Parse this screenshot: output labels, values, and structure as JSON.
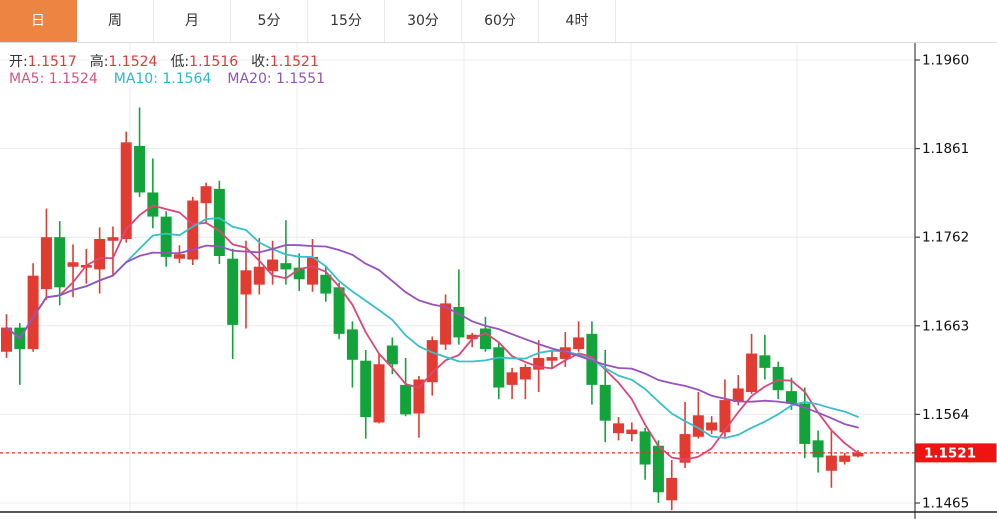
{
  "tabs": [
    {
      "label": "日",
      "name": "tab-day",
      "active": true
    },
    {
      "label": "周",
      "name": "tab-week",
      "active": false
    },
    {
      "label": "月",
      "name": "tab-month",
      "active": false
    },
    {
      "label": "5分",
      "name": "tab-5min",
      "active": false
    },
    {
      "label": "15分",
      "name": "tab-15min",
      "active": false
    },
    {
      "label": "30分",
      "name": "tab-30min",
      "active": false
    },
    {
      "label": "60分",
      "name": "tab-60min",
      "active": false
    },
    {
      "label": "4时",
      "name": "tab-4hour",
      "active": false
    }
  ],
  "accent": {
    "active_tab_bg": "#ee8441",
    "price_tag_bg": "#ee1412",
    "dotted_line": "#f02b1d"
  },
  "legend": {
    "ohlc": [
      {
        "label": "开:",
        "value": "1.1517"
      },
      {
        "label": "高:",
        "value": "1.1524"
      },
      {
        "label": "低:",
        "value": "1.1516"
      },
      {
        "label": "收:",
        "value": "1.1521"
      }
    ],
    "ma": [
      {
        "label": "MA5:",
        "value": "1.1524",
        "color": "#d8547e"
      },
      {
        "label": "MA10:",
        "value": "1.1564",
        "color": "#2ab9c6"
      },
      {
        "label": "MA20:",
        "value": "1.1551",
        "color": "#9057b8"
      }
    ]
  },
  "chart_data": {
    "type": "candlestick",
    "up_color": "#e23b31",
    "down_color": "#12a43a",
    "y_axis": {
      "labels": [
        "1.1960",
        "1.1861",
        "1.1762",
        "1.1663",
        "1.1564",
        "1.1465"
      ],
      "top": 1.196,
      "bottom": 1.1465
    },
    "current_price": {
      "value": "1.1521",
      "price": 1.1521
    },
    "last_candle": {
      "open": "1.1517",
      "high": "1.1524",
      "low": "1.1516",
      "close": "1.1521"
    },
    "ma_series": [
      {
        "period": 5,
        "name": "MA5",
        "color": "#dd4678",
        "value": "1.1524"
      },
      {
        "period": 10,
        "name": "MA10",
        "color": "#35c0cb",
        "value": "1.1564"
      },
      {
        "period": 20,
        "name": "MA20",
        "color": "#9851bd",
        "value": "1.1551"
      }
    ],
    "candles": [
      [
        1.1634,
        1.1676,
        1.1627,
        1.1661
      ],
      [
        1.1661,
        1.1666,
        1.1597,
        1.1637
      ],
      [
        1.1637,
        1.1733,
        1.1634,
        1.1719
      ],
      [
        1.1704,
        1.1794,
        1.1692,
        1.1762
      ],
      [
        1.1762,
        1.178,
        1.1686,
        1.1706
      ],
      [
        1.1729,
        1.1754,
        1.1695,
        1.1734
      ],
      [
        1.1728,
        1.1749,
        1.171,
        1.1731
      ],
      [
        1.1726,
        1.1773,
        1.1699,
        1.176
      ],
      [
        1.1758,
        1.1774,
        1.172,
        1.1762
      ],
      [
        1.176,
        1.188,
        1.1756,
        1.1868
      ],
      [
        1.1864,
        1.1907,
        1.1807,
        1.1812
      ],
      [
        1.1812,
        1.185,
        1.1772,
        1.1785
      ],
      [
        1.1785,
        1.1791,
        1.1729,
        1.174
      ],
      [
        1.1738,
        1.1753,
        1.1733,
        1.1743
      ],
      [
        1.1737,
        1.1807,
        1.1731,
        1.1803
      ],
      [
        1.18,
        1.1823,
        1.1778,
        1.1819
      ],
      [
        1.1816,
        1.1825,
        1.1732,
        1.1741
      ],
      [
        1.1738,
        1.1749,
        1.1626,
        1.1664
      ],
      [
        1.1698,
        1.1758,
        1.166,
        1.1725
      ],
      [
        1.1709,
        1.1761,
        1.1698,
        1.1729
      ],
      [
        1.1724,
        1.1758,
        1.1709,
        1.1737
      ],
      [
        1.1733,
        1.1781,
        1.1709,
        1.1726
      ],
      [
        1.1728,
        1.1744,
        1.1702,
        1.1715
      ],
      [
        1.1709,
        1.176,
        1.1701,
        1.174
      ],
      [
        1.172,
        1.1729,
        1.169,
        1.1699
      ],
      [
        1.1706,
        1.1711,
        1.1648,
        1.1654
      ],
      [
        1.1659,
        1.1668,
        1.1594,
        1.1625
      ],
      [
        1.1624,
        1.1636,
        1.1537,
        1.1561
      ],
      [
        1.1555,
        1.1632,
        1.1554,
        1.162
      ],
      [
        1.1641,
        1.165,
        1.1609,
        1.162
      ],
      [
        1.1597,
        1.1627,
        1.1562,
        1.1564
      ],
      [
        1.1565,
        1.1607,
        1.1538,
        1.1603
      ],
      [
        1.16,
        1.1651,
        1.1585,
        1.1647
      ],
      [
        1.1642,
        1.1698,
        1.1636,
        1.1688
      ],
      [
        1.1684,
        1.1726,
        1.1642,
        1.165
      ],
      [
        1.1648,
        1.1655,
        1.1639,
        1.1653
      ],
      [
        1.166,
        1.1673,
        1.1634,
        1.1637
      ],
      [
        1.1639,
        1.1645,
        1.1581,
        1.1594
      ],
      [
        1.1597,
        1.1616,
        1.1581,
        1.1611
      ],
      [
        1.1603,
        1.162,
        1.1581,
        1.1617
      ],
      [
        1.1614,
        1.1647,
        1.1589,
        1.1627
      ],
      [
        1.1624,
        1.1636,
        1.1616,
        1.1628
      ],
      [
        1.1626,
        1.1656,
        1.1617,
        1.1639
      ],
      [
        1.1637,
        1.1668,
        1.1634,
        1.165
      ],
      [
        1.1654,
        1.1668,
        1.1575,
        1.1597
      ],
      [
        1.1597,
        1.1636,
        1.1533,
        1.1557
      ],
      [
        1.1543,
        1.1561,
        1.1535,
        1.1554
      ],
      [
        1.1542,
        1.1555,
        1.1534,
        1.1547
      ],
      [
        1.1545,
        1.1549,
        1.1491,
        1.1508
      ],
      [
        1.1529,
        1.1535,
        1.1465,
        1.1477
      ],
      [
        1.1468,
        1.1513,
        1.1457,
        1.1493
      ],
      [
        1.151,
        1.1578,
        1.1504,
        1.1542
      ],
      [
        1.1539,
        1.1589,
        1.1537,
        1.1563
      ],
      [
        1.1546,
        1.1562,
        1.1542,
        1.1555
      ],
      [
        1.1544,
        1.1603,
        1.1538,
        1.158
      ],
      [
        1.1578,
        1.1608,
        1.1574,
        1.1593
      ],
      [
        1.1589,
        1.1654,
        1.1587,
        1.1632
      ],
      [
        1.163,
        1.1653,
        1.1603,
        1.1616
      ],
      [
        1.1617,
        1.1623,
        1.1581,
        1.1591
      ],
      [
        1.159,
        1.1605,
        1.1569,
        1.1576
      ],
      [
        1.1576,
        1.1594,
        1.1515,
        1.1531
      ],
      [
        1.1535,
        1.1546,
        1.1499,
        1.1516
      ],
      [
        1.1501,
        1.1547,
        1.1482,
        1.1518
      ],
      [
        1.1511,
        1.1521,
        1.1508,
        1.1518
      ],
      [
        1.1517,
        1.1524,
        1.1516,
        1.1521
      ]
    ]
  }
}
